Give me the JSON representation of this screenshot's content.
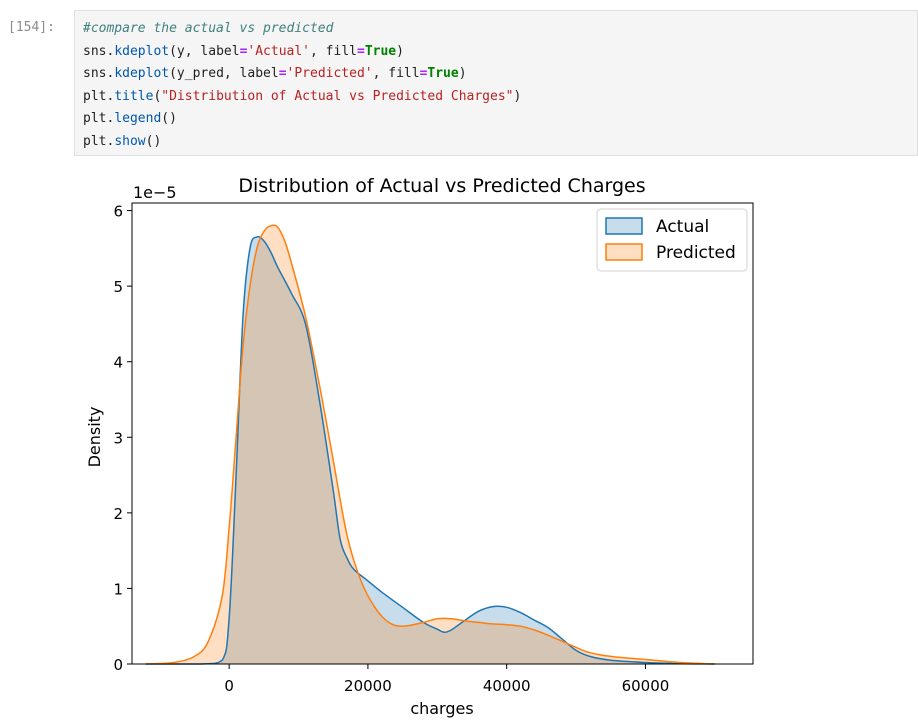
{
  "cell": {
    "prompt": "[154]:",
    "lines": [
      [
        {
          "t": "#compare the actual vs predicted",
          "c": "cm"
        }
      ],
      [
        {
          "t": "sns.",
          "c": ""
        },
        {
          "t": "kdeplot",
          "c": "fn"
        },
        {
          "t": "(y, label",
          "c": ""
        },
        {
          "t": "=",
          "c": "op"
        },
        {
          "t": "'Actual'",
          "c": "str"
        },
        {
          "t": ", fill",
          "c": ""
        },
        {
          "t": "=",
          "c": "op"
        },
        {
          "t": "True",
          "c": "kw"
        },
        {
          "t": ")",
          "c": ""
        }
      ],
      [
        {
          "t": "sns.",
          "c": ""
        },
        {
          "t": "kdeplot",
          "c": "fn"
        },
        {
          "t": "(y_pred, label",
          "c": ""
        },
        {
          "t": "=",
          "c": "op"
        },
        {
          "t": "'Predicted'",
          "c": "str"
        },
        {
          "t": ", fill",
          "c": ""
        },
        {
          "t": "=",
          "c": "op"
        },
        {
          "t": "True",
          "c": "kw"
        },
        {
          "t": ")",
          "c": ""
        }
      ],
      [
        {
          "t": "plt.",
          "c": ""
        },
        {
          "t": "title",
          "c": "fn"
        },
        {
          "t": "(",
          "c": ""
        },
        {
          "t": "\"Distribution of Actual vs Predicted Charges\"",
          "c": "str"
        },
        {
          "t": ")",
          "c": ""
        }
      ],
      [
        {
          "t": "plt.",
          "c": ""
        },
        {
          "t": "legend",
          "c": "fn"
        },
        {
          "t": "()",
          "c": ""
        }
      ],
      [
        {
          "t": "plt.",
          "c": ""
        },
        {
          "t": "show",
          "c": "fn"
        },
        {
          "t": "()",
          "c": ""
        }
      ]
    ]
  },
  "chart_data": {
    "type": "area",
    "title": "Distribution of Actual vs Predicted Charges",
    "xlabel": "charges",
    "ylabel": "Density",
    "y_offset_label": "1e−5",
    "xlim": [
      -14000,
      75500
    ],
    "ylim": [
      0,
      6.1
    ],
    "xticks": [
      0,
      20000,
      40000,
      60000
    ],
    "yticks": [
      0,
      1,
      2,
      3,
      4,
      5,
      6
    ],
    "legend_position": "top-right",
    "series": [
      {
        "name": "Actual",
        "color": "#1f77b4",
        "x": [
          -12000,
          -4000,
          -1000,
          0,
          1000,
          2000,
          3000,
          4000,
          5000,
          6000,
          7000,
          9000,
          11000,
          13000,
          15000,
          16000,
          17000,
          18000,
          20000,
          22000,
          25000,
          28000,
          30000,
          31000,
          32000,
          34000,
          36000,
          38000,
          40000,
          42000,
          44000,
          46000,
          48000,
          50000,
          52000,
          55000,
          60000,
          65000,
          70000
        ],
        "y": [
          0,
          0,
          0.05,
          0.6,
          2.5,
          4.6,
          5.5,
          5.65,
          5.6,
          5.45,
          5.25,
          4.9,
          4.5,
          3.5,
          2.3,
          1.65,
          1.4,
          1.25,
          1.1,
          0.95,
          0.75,
          0.55,
          0.46,
          0.42,
          0.45,
          0.58,
          0.7,
          0.76,
          0.75,
          0.68,
          0.58,
          0.48,
          0.33,
          0.18,
          0.1,
          0.05,
          0.02,
          0.005,
          0
        ]
      },
      {
        "name": "Predicted",
        "color": "#ff7f0e",
        "x": [
          -12000,
          -8000,
          -5000,
          -3000,
          -1000,
          0,
          1000,
          2000,
          3000,
          4000,
          5000,
          6000,
          7000,
          8000,
          9000,
          11000,
          13000,
          15000,
          17000,
          19000,
          21000,
          23000,
          25000,
          28000,
          30000,
          32000,
          34000,
          36000,
          38000,
          40000,
          42000,
          44000,
          46000,
          48000,
          50000,
          52000,
          55000,
          60000,
          65000,
          70000
        ],
        "y": [
          0,
          0.02,
          0.1,
          0.3,
          0.9,
          1.8,
          3.0,
          4.2,
          5.0,
          5.5,
          5.72,
          5.8,
          5.78,
          5.6,
          5.3,
          4.6,
          3.7,
          2.7,
          1.7,
          1.1,
          0.75,
          0.55,
          0.5,
          0.55,
          0.6,
          0.6,
          0.57,
          0.55,
          0.53,
          0.52,
          0.5,
          0.45,
          0.38,
          0.3,
          0.22,
          0.15,
          0.1,
          0.06,
          0.02,
          0
        ]
      }
    ]
  }
}
